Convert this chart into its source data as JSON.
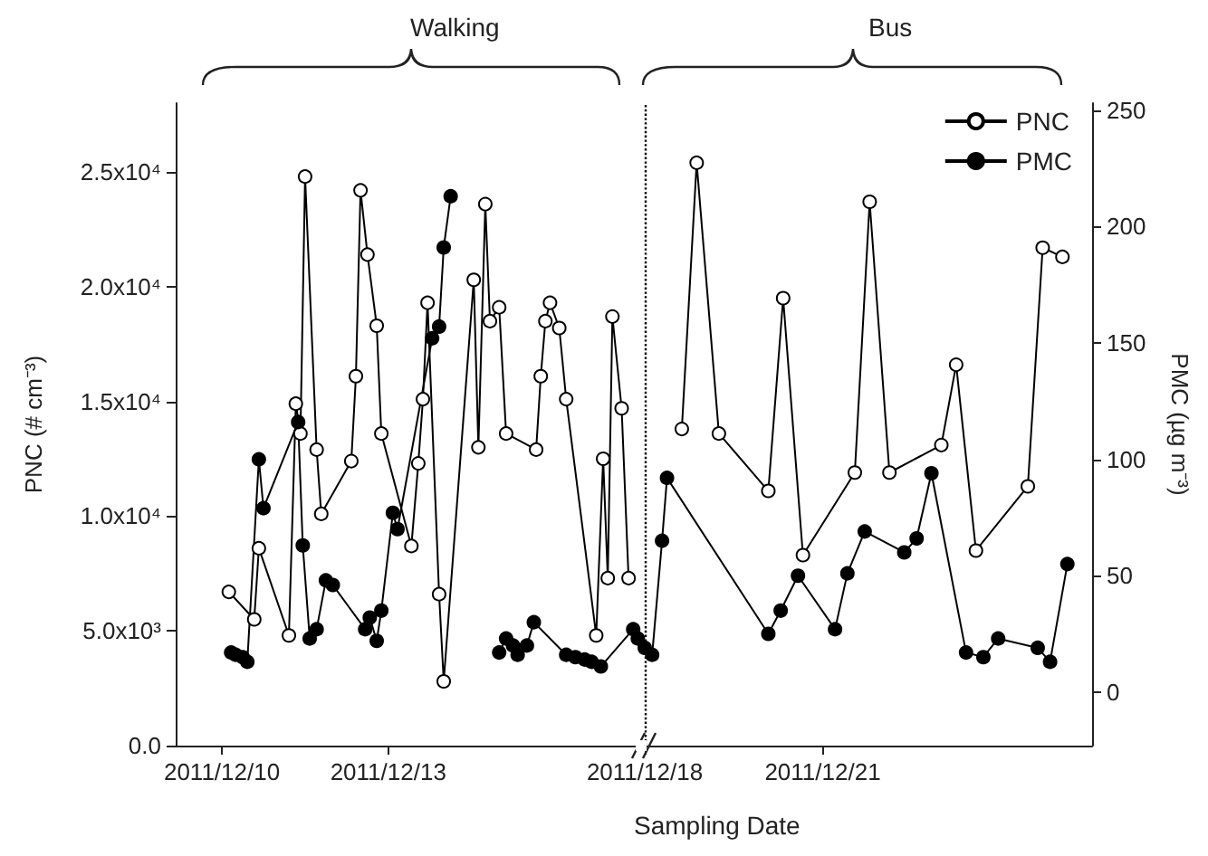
{
  "chart_data": [
    {
      "type": "line",
      "xlabel": "Sampling Date",
      "ylabel": "PNC (# cm⁻³)",
      "annotations": [
        "Walking"
      ],
      "marker": "circle",
      "tick_labels": "xy",
      "xlim": [
        "2011-12-09T04:00",
        "2011-12-17T15:00"
      ],
      "xticks": [
        {
          "value": "2011-12-10",
          "label": "2011/12/10"
        },
        {
          "value": "2011-12-13",
          "label": "2011/12/13"
        }
      ],
      "ylim": [
        0,
        28000
      ],
      "yticks": [
        {
          "value": 0,
          "label": "0.0"
        },
        {
          "value": 5000,
          "label": "5.0x10³"
        },
        {
          "value": 10000,
          "label": "1.0x10⁴"
        },
        {
          "value": 15000,
          "label": "1.5x10⁴"
        },
        {
          "value": 20000,
          "label": "2.0x10⁴"
        },
        {
          "value": 25000,
          "label": "2.5x10⁴"
        }
      ],
      "y2lim": [
        -23,
        253
      ],
      "series": [
        {
          "color": "#ffffff",
          "x": [
            "2011-12-10T03:00",
            "2011-12-10T14:00",
            "2011-12-10T16:00",
            "2011-12-11T05:00",
            "2011-12-11T08:00",
            "2011-12-11T10:00",
            "2011-12-11T12:00",
            "2011-12-11T17:00",
            "2011-12-11T19:00",
            "2011-12-12T08:00",
            "2011-12-12T10:00",
            "2011-12-12T12:00",
            "2011-12-12T15:00",
            "2011-12-12T19:00",
            "2011-12-12T21:00",
            "2011-12-13T10:00",
            "2011-12-13T13:00",
            "2011-12-13T15:00",
            "2011-12-13T17:00",
            "2011-12-13T22:00",
            "2011-12-14T00:00",
            "2011-12-14T13:00",
            "2011-12-14T15:00",
            "2011-12-14T18:00",
            "2011-12-14T20:00",
            "2011-12-15T00:00",
            "2011-12-15T03:00",
            "2011-12-15T16:00",
            "2011-12-15T18:00",
            "2011-12-15T20:00",
            "2011-12-15T22:00",
            "2011-12-16T02:00",
            "2011-12-16T05:00",
            "2011-12-16T18:00",
            "2011-12-16T21:00",
            "2011-12-16T23:00",
            "2011-12-17T01:00",
            "2011-12-17T05:00",
            "2011-12-17T08:00"
          ],
          "values": [
            6700,
            5500,
            8600,
            4800,
            14900,
            13600,
            24800,
            12900,
            10100,
            12400,
            16100,
            24200,
            21400,
            18300,
            13600,
            8700,
            12300,
            15100,
            19300,
            6600,
            2800,
            20300,
            13000,
            23600,
            18500,
            19100,
            13600,
            12900,
            16100,
            18500,
            19300,
            18200,
            15100,
            4800,
            12500,
            7300,
            18700,
            14700,
            7300
          ]
        },
        {
          "color": "#000000",
          "axis": "y2",
          "x": [
            "2011-12-10T04:00",
            "2011-12-10T06:00",
            "2011-12-10T09:00",
            "2011-12-10T11:00",
            "2011-12-10T16:00",
            "2011-12-10T18:00",
            "2011-12-11T09:00",
            "2011-12-11T11:00",
            "2011-12-11T14:00",
            "2011-12-11T17:00",
            "2011-12-11T21:00",
            "2011-12-12T00:00",
            "2011-12-12T14:00",
            "2011-12-12T16:00",
            "2011-12-12T19:00",
            "2011-12-12T21:00",
            "2011-12-13T02:00",
            "2011-12-13T04:00",
            "2011-12-13T19:00",
            "2011-12-13T22:00",
            "2011-12-14T00:00",
            "2011-12-14T03:00",
            "2011-12-14T12:00",
            "2011-12-15T00:00",
            "2011-12-15T03:00",
            "2011-12-15T06:00",
            "2011-12-15T08:00",
            "2011-12-15T12:00",
            "2011-12-15T15:00",
            "2011-12-16T05:00",
            "2011-12-16T09:00",
            "2011-12-16T13:00",
            "2011-12-16T16:00",
            "2011-12-16T20:00",
            "2011-12-17T10:00",
            "2011-12-17T12:00"
          ],
          "values": [
            17,
            16,
            15,
            13,
            100,
            79,
            116,
            63,
            23,
            27,
            48,
            46,
            27,
            32,
            22,
            35,
            77,
            70,
            152,
            157,
            191,
            213,
            null,
            17,
            23,
            20,
            16,
            20,
            30,
            16,
            15,
            14,
            13,
            11,
            27,
            23
          ]
        }
      ]
    },
    {
      "type": "line",
      "y2label": "PMC (µg m⁻³)",
      "annotations": [
        "Bus"
      ],
      "marker": "circle",
      "tick_labels": "xy2",
      "legend": "top right",
      "xlim": [
        "2011-12-18T00:00",
        "2011-12-25T13:00"
      ],
      "xticks": [
        {
          "value": "2011-12-18",
          "label": "2011/12/18"
        },
        {
          "value": "2011-12-21",
          "label": "2011/12/21"
        }
      ],
      "ylim": [
        0,
        28000
      ],
      "y2lim": [
        -23,
        253
      ],
      "y2ticks": [
        0,
        50,
        100,
        150,
        200,
        250
      ],
      "ref_lines": [
        {
          "axis": "x",
          "value": "2011-12-18",
          "line_style": "dotted",
          "color": "#000000"
        }
      ],
      "series": [
        {
          "name": "PNC",
          "color": "#ffffff",
          "x": [
            "2011-12-18T15:00",
            "2011-12-18T21:00",
            "2011-12-19T06:00",
            "2011-12-20T02:00",
            "2011-12-20T08:00",
            "2011-12-20T16:00",
            "2011-12-21T13:00",
            "2011-12-21T19:00",
            "2011-12-22T03:00",
            "2011-12-23T00:00",
            "2011-12-23T06:00",
            "2011-12-23T14:00",
            "2011-12-24T11:00",
            "2011-12-24T17:00",
            "2011-12-25T01:00"
          ],
          "values": [
            13800,
            25400,
            13600,
            11100,
            19500,
            8300,
            11900,
            23700,
            11900,
            13100,
            16600,
            8500,
            11300,
            21700,
            21300
          ]
        },
        {
          "name": "PMC",
          "color": "#000000",
          "axis": "y2",
          "x": [
            "2011-12-18T00:00",
            "2011-12-18T03:00",
            "2011-12-18T07:00",
            "2011-12-18T09:00",
            "2011-12-20T02:00",
            "2011-12-20T07:00",
            "2011-12-20T14:00",
            "2011-12-21T05:00",
            "2011-12-21T10:00",
            "2011-12-21T17:00",
            "2011-12-22T09:00",
            "2011-12-22T14:00",
            "2011-12-22T20:00",
            "2011-12-23T10:00",
            "2011-12-23T17:00",
            "2011-12-23T23:00",
            "2011-12-24T15:00",
            "2011-12-24T20:00",
            "2011-12-25T03:00"
          ],
          "values": [
            19,
            16,
            65,
            92,
            25,
            35,
            50,
            27,
            51,
            69,
            60,
            66,
            94,
            17,
            15,
            23,
            19,
            13,
            55
          ]
        }
      ]
    }
  ]
}
